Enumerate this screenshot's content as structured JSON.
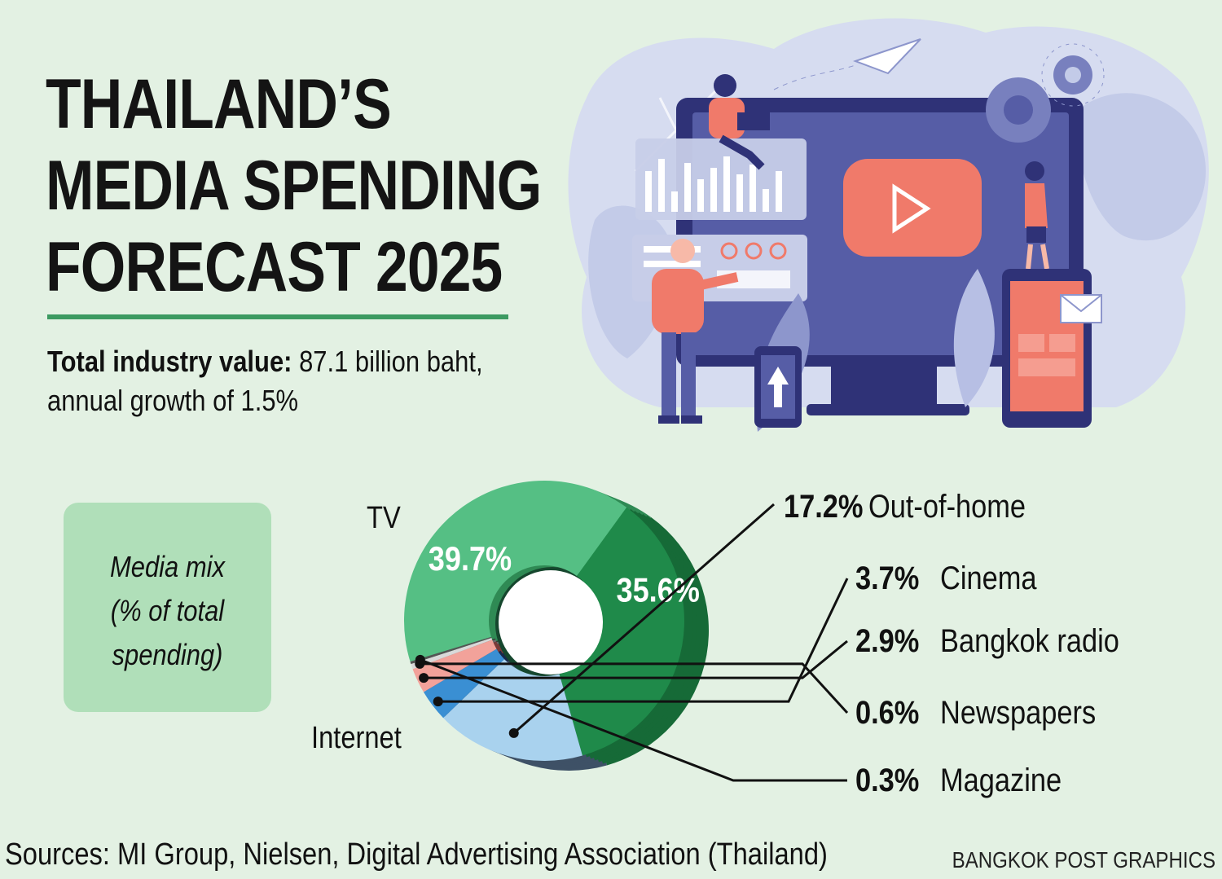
{
  "title_lines": [
    "THAILAND’S",
    "MEDIA SPENDING",
    "FORECAST 2025"
  ],
  "subtitle": {
    "bold": "Total industry value:",
    "line1_rest": " 87.1 billion baht,",
    "line2": "annual growth of 1.5%"
  },
  "media_mix_label": [
    "Media mix",
    "(% of total",
    "spending)"
  ],
  "illustration": {
    "icons": [
      "paper-plane-icon",
      "gear-icon",
      "play-icon",
      "up-arrow-icon",
      "mail-icon"
    ]
  },
  "colors": {
    "background": "#e3f1e3",
    "tv": "#1f8a4a",
    "internet": "#55bf84",
    "out_of_home": "#a9d2ee",
    "cinema": "#3a8fd3",
    "bangkok_radio": "#f2a29a",
    "newspapers": "#d9d9d9",
    "magazine": "#555555"
  },
  "chart_data": {
    "type": "pie",
    "variant": "donut",
    "title": "Media mix (% of total spending)",
    "unit": "%",
    "slices": [
      {
        "name": "TV",
        "value": 35.6,
        "label": "35.6%",
        "color": "#1f8a4a",
        "side_color": "#166a37"
      },
      {
        "name": "Out-of-home",
        "value": 17.2,
        "label": "17.2%",
        "color": "#a9d2ee",
        "side_color": "#3e5166"
      },
      {
        "name": "Cinema",
        "value": 3.7,
        "label": "3.7%",
        "color": "#3a8fd3",
        "side_color": "#18294a"
      },
      {
        "name": "Bangkok radio",
        "value": 2.9,
        "label": "2.9%",
        "color": "#f2a29a",
        "side_color": "#7a3a38"
      },
      {
        "name": "Newspapers",
        "value": 0.6,
        "label": "0.6%",
        "color": "#d9d9d9",
        "side_color": "#6a6a6a"
      },
      {
        "name": "Magazine",
        "value": 0.3,
        "label": "0.3%",
        "color": "#555555",
        "side_color": "#333333"
      },
      {
        "name": "Internet",
        "value": 39.7,
        "label": "39.7%",
        "color": "#55bf84",
        "side_color": "#2f8a54"
      }
    ]
  },
  "footer": {
    "sources": "Sources: MI Group, Nielsen, Digital Advertising Association (Thailand)",
    "credit": "BANGKOK POST GRAPHICS"
  }
}
